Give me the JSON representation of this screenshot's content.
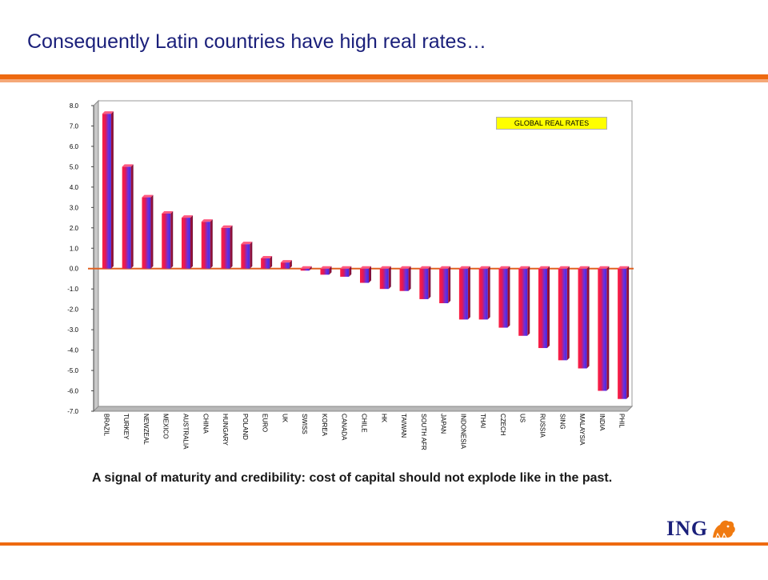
{
  "slide": {
    "title": "Consequently Latin countries have high real rates…",
    "caption": "A signal of maturity and credibility: cost of capital should not explode like in the past.",
    "logo_text": "ING"
  },
  "colors": {
    "title": "#1a1f7a",
    "accent": "#ee6a10",
    "bar_red": "#f01848",
    "bar_blue": "#5a30e8",
    "zero_line": "#e06020",
    "legend_bg": "#ffff00"
  },
  "chart_data": {
    "type": "bar",
    "legend": "GLOBAL REAL RATES",
    "categories": [
      "BRAZIL",
      "TURKEY",
      "NEWZEAL",
      "MEXICO",
      "AUSTRALIA",
      "CHINA",
      "HUNGARY",
      "POLAND",
      "EURO",
      "UK",
      "SWISS",
      "KOREA",
      "CANADA",
      "CHILE",
      "HK",
      "TAIWAN",
      "SOUTH AFR",
      "JAPAN",
      "INDONESIA",
      "THAI",
      "CZECH",
      "US",
      "RUSSIA",
      "SING",
      "MALAYSIA",
      "INDIA",
      "PHIL"
    ],
    "values": [
      7.6,
      5.0,
      3.5,
      2.7,
      2.5,
      2.3,
      2.0,
      1.2,
      0.5,
      0.3,
      -0.1,
      -0.3,
      -0.4,
      -0.7,
      -1.0,
      -1.1,
      -1.5,
      -1.7,
      -2.5,
      -2.5,
      -2.9,
      -3.3,
      -3.9,
      -4.5,
      -4.9,
      -6.0,
      -6.4
    ],
    "ylim": [
      -7.0,
      8.0
    ],
    "yticks": [
      "8.0",
      "7.0",
      "6.0",
      "5.0",
      "4.0",
      "3.0",
      "2.0",
      "1.0",
      "0.0",
      "-1.0",
      "-2.0",
      "-3.0",
      "-4.0",
      "-5.0",
      "-6.0",
      "-7.0"
    ],
    "xlabel": "",
    "ylabel": "",
    "grid": false
  }
}
